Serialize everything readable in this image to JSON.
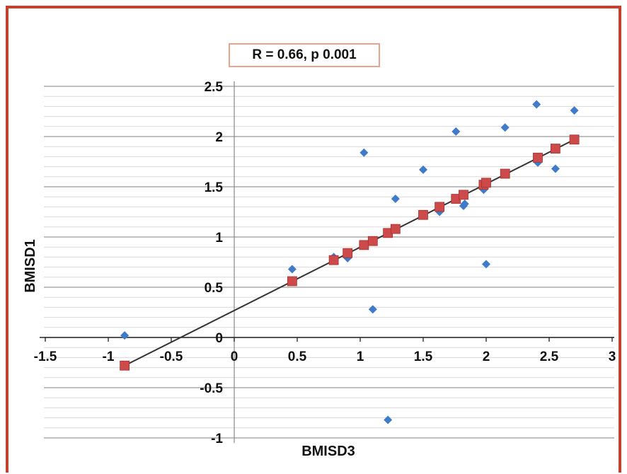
{
  "chart_data": {
    "type": "scatter",
    "annotation": "R = 0.66, p 0.001",
    "xlabel": "BMISD3",
    "ylabel": "BMISD1",
    "xlim": [
      -1.5,
      3
    ],
    "ylim": [
      -1.05,
      2.55
    ],
    "x_ticks": [
      "-1.5",
      "-1",
      "-0.5",
      "0",
      "0.5",
      "1",
      "1.5",
      "2",
      "2.5",
      "3"
    ],
    "y_ticks": [
      "-1",
      "-0.5",
      "0",
      "0.5",
      "1",
      "1.5",
      "2",
      "2.5"
    ],
    "grid": true,
    "series": [
      {
        "marker": "diamond",
        "color": "#3f7bc8",
        "x": [
          -0.87,
          0.46,
          0.79,
          0.9,
          1.03,
          1.1,
          1.22,
          1.28,
          1.5,
          1.63,
          1.76,
          1.82,
          1.83,
          1.98,
          2.0,
          2.15,
          2.4,
          2.41,
          2.55,
          2.7
        ],
        "y": [
          0.02,
          0.68,
          0.8,
          0.79,
          1.84,
          0.28,
          -0.82,
          1.38,
          1.67,
          1.25,
          2.05,
          1.31,
          1.33,
          1.47,
          0.73,
          2.09,
          2.32,
          1.74,
          1.68,
          2.26
        ]
      },
      {
        "marker": "square",
        "color": "#cc4a4a",
        "x": [
          -0.87,
          0.46,
          0.79,
          0.9,
          1.03,
          1.1,
          1.22,
          1.28,
          1.5,
          1.63,
          1.76,
          1.82,
          1.98,
          2.0,
          2.15,
          2.41,
          2.55,
          2.7
        ],
        "y": [
          -0.28,
          0.56,
          0.77,
          0.84,
          0.92,
          0.96,
          1.04,
          1.08,
          1.22,
          1.3,
          1.38,
          1.42,
          1.52,
          1.54,
          1.63,
          1.79,
          1.88,
          1.97
        ]
      }
    ],
    "trendline": {
      "x": [
        -0.87,
        2.7
      ],
      "y": [
        -0.28,
        1.97
      ],
      "color": "#333333"
    }
  }
}
